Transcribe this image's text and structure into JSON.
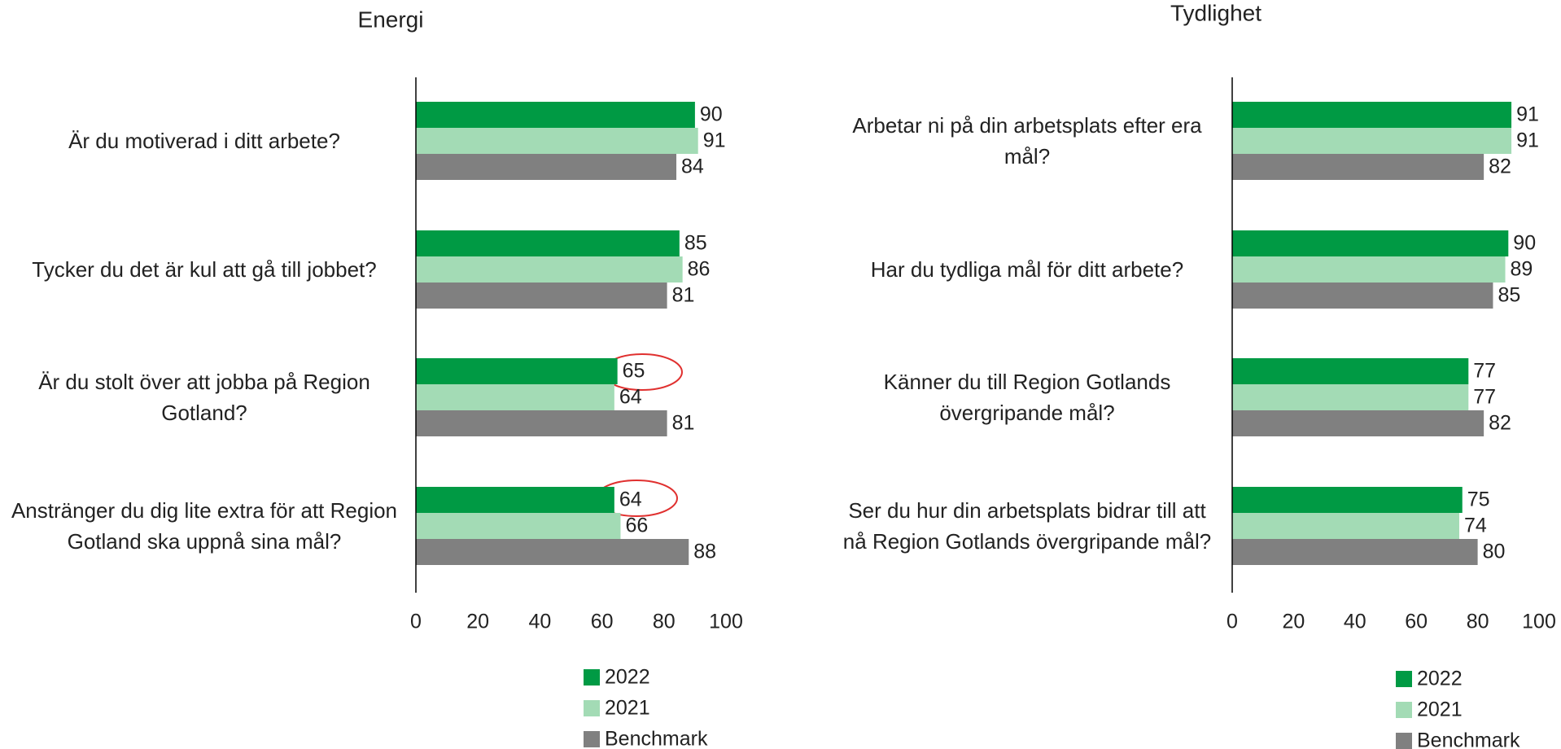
{
  "chart_data": [
    {
      "type": "bar",
      "orientation": "horizontal",
      "title": "Energi",
      "categories": [
        "Är du motiverad i ditt arbete?",
        "Tycker du det är kul att gå till jobbet?",
        "Är du stolt över att jobba på Region Gotland?",
        "Anstränger du dig lite extra för att Region Gotland ska uppnå sina mål?"
      ],
      "series": [
        {
          "name": "2022",
          "color": "#009a44",
          "values": [
            90,
            85,
            65,
            64
          ]
        },
        {
          "name": "2021",
          "color": "#a3dbb5",
          "values": [
            91,
            86,
            64,
            66
          ]
        },
        {
          "name": "Benchmark",
          "color": "#808080",
          "values": [
            84,
            81,
            81,
            88
          ]
        }
      ],
      "xlim": [
        0,
        100
      ],
      "xticks": [
        0,
        20,
        40,
        60,
        80,
        100
      ],
      "legend": "bottom"
    },
    {
      "type": "bar",
      "orientation": "horizontal",
      "title": "Tydlighet",
      "categories": [
        "Arbetar ni på din arbetsplats efter era mål?",
        "Har du tydliga mål för ditt arbete?",
        "Känner du till Region Gotlands övergripande mål?",
        "Ser du hur din arbetsplats bidrar till att nå Region Gotlands övergripande mål?"
      ],
      "series": [
        {
          "name": "2022",
          "color": "#009a44",
          "values": [
            91,
            90,
            77,
            75
          ]
        },
        {
          "name": "2021",
          "color": "#a3dbb5",
          "values": [
            91,
            89,
            77,
            74
          ]
        },
        {
          "name": "Benchmark",
          "color": "#808080",
          "values": [
            82,
            85,
            82,
            80
          ]
        }
      ],
      "xlim": [
        0,
        100
      ],
      "xticks": [
        0,
        20,
        40,
        60,
        80,
        100
      ],
      "legend": "bottom"
    }
  ]
}
